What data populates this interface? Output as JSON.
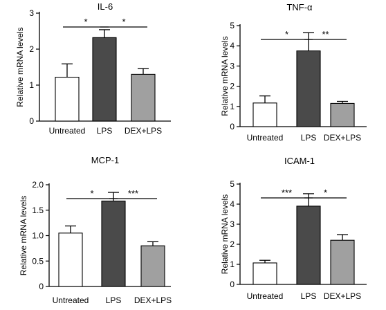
{
  "chart_data": [
    {
      "type": "bar",
      "title": "IL-6",
      "ylabel": "Relative mRNA levels",
      "categories": [
        "Untreated",
        "LPS",
        "DEX+LPS"
      ],
      "values": [
        1.22,
        2.32,
        1.3
      ],
      "errors": [
        0.37,
        0.22,
        0.16
      ],
      "bar_colors": [
        "#ffffff",
        "#4a4a4a",
        "#a0a0a0"
      ],
      "ylim": [
        0,
        3
      ],
      "yticks": [
        0,
        1,
        2,
        3
      ],
      "ytick_labels": [
        "0",
        "1",
        "2",
        "3"
      ],
      "significance": [
        {
          "from": 0,
          "to": 1,
          "label": "*"
        },
        {
          "from": 1,
          "to": 2,
          "label": "*"
        }
      ]
    },
    {
      "type": "bar",
      "title": "TNF-α",
      "ylabel": "Relative mRNA levels",
      "categories": [
        "Untreated",
        "LPS",
        "DEX+LPS"
      ],
      "values": [
        1.17,
        3.75,
        1.15
      ],
      "errors": [
        0.35,
        0.9,
        0.1
      ],
      "bar_colors": [
        "#ffffff",
        "#4a4a4a",
        "#a0a0a0"
      ],
      "ylim": [
        0,
        5
      ],
      "yticks": [
        0,
        1,
        2,
        3,
        4,
        5
      ],
      "ytick_labels": [
        "0",
        "1",
        "2",
        "3",
        "4",
        "5"
      ],
      "significance": [
        {
          "from": 0,
          "to": 1,
          "label": "*"
        },
        {
          "from": 1,
          "to": 2,
          "label": "**"
        }
      ]
    },
    {
      "type": "bar",
      "title": "MCP-1",
      "ylabel": "Relative mRNA levels",
      "categories": [
        "Untreated",
        "LPS",
        "DEX+LPS"
      ],
      "values": [
        1.05,
        1.68,
        0.8
      ],
      "errors": [
        0.14,
        0.17,
        0.08
      ],
      "bar_colors": [
        "#ffffff",
        "#4a4a4a",
        "#a0a0a0"
      ],
      "ylim": [
        0,
        2.0
      ],
      "yticks": [
        0,
        0.5,
        1.0,
        1.5,
        2.0
      ],
      "ytick_labels": [
        "0",
        "0.5",
        "1.0",
        "1.5",
        "2.0"
      ],
      "significance": [
        {
          "from": 0,
          "to": 1,
          "label": "*"
        },
        {
          "from": 1,
          "to": 2,
          "label": "***"
        }
      ]
    },
    {
      "type": "bar",
      "title": "ICAM-1",
      "ylabel": "Relative mRNA levels",
      "categories": [
        "Untreated",
        "LPS",
        "DEX+LPS"
      ],
      "values": [
        1.07,
        3.9,
        2.2
      ],
      "errors": [
        0.13,
        0.62,
        0.28
      ],
      "bar_colors": [
        "#ffffff",
        "#4a4a4a",
        "#a0a0a0"
      ],
      "ylim": [
        0,
        5
      ],
      "yticks": [
        0,
        1,
        2,
        3,
        4,
        5
      ],
      "ytick_labels": [
        "0",
        "1",
        "2",
        "3",
        "4",
        "5"
      ],
      "significance": [
        {
          "from": 0,
          "to": 1,
          "label": "***"
        },
        {
          "from": 1,
          "to": 2,
          "label": "*"
        }
      ]
    }
  ]
}
